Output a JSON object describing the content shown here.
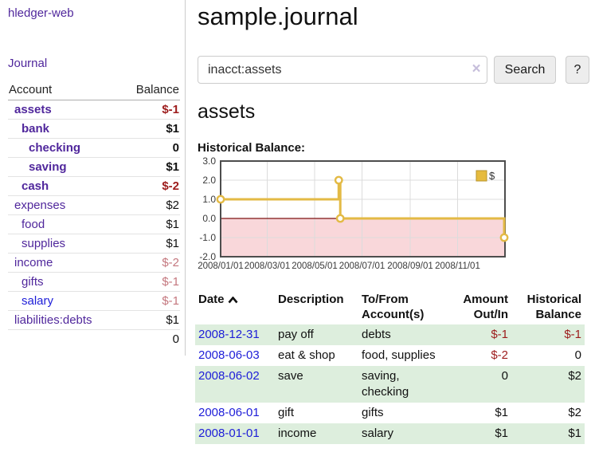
{
  "app": {
    "brand": "hledger-web",
    "nav_journal": "Journal"
  },
  "sidebar": {
    "header": {
      "account": "Account",
      "balance": "Balance"
    },
    "accounts": [
      {
        "label": "assets",
        "indent": 1,
        "bold": true,
        "label_color": "purple",
        "balance": "$-1",
        "balance_style": "neg"
      },
      {
        "label": "bank",
        "indent": 2,
        "bold": true,
        "label_color": "purple",
        "balance": "$1",
        "balance_style": "pos"
      },
      {
        "label": "checking",
        "indent": 3,
        "bold": true,
        "label_color": "purple",
        "balance": "0",
        "balance_style": "pos"
      },
      {
        "label": "saving",
        "indent": 3,
        "bold": true,
        "label_color": "purple",
        "balance": "$1",
        "balance_style": "pos"
      },
      {
        "label": "cash",
        "indent": 2,
        "bold": true,
        "label_color": "purple",
        "balance": "$-2",
        "balance_style": "neg"
      },
      {
        "label": "expenses",
        "indent": 1,
        "bold": false,
        "label_color": "purple",
        "balance": "$2",
        "balance_style": "pos"
      },
      {
        "label": "food",
        "indent": 2,
        "bold": false,
        "label_color": "purple",
        "balance": "$1",
        "balance_style": "pos"
      },
      {
        "label": "supplies",
        "indent": 2,
        "bold": false,
        "label_color": "purple",
        "balance": "$1",
        "balance_style": "pos"
      },
      {
        "label": "income",
        "indent": 1,
        "bold": false,
        "label_color": "purple",
        "balance": "$-2",
        "balance_style": "dimneg"
      },
      {
        "label": "gifts",
        "indent": 2,
        "bold": false,
        "label_color": "purple",
        "balance": "$-1",
        "balance_style": "dimneg"
      },
      {
        "label": "salary",
        "indent": 2,
        "bold": false,
        "label_color": "blue",
        "balance": "$-1",
        "balance_style": "dimneg"
      },
      {
        "label": "liabilities:debts",
        "indent": 1,
        "bold": false,
        "label_color": "purple",
        "balance": "$1",
        "balance_style": "pos"
      }
    ],
    "total": "0"
  },
  "header": {
    "title": "sample.journal"
  },
  "search": {
    "value": "inacct:assets",
    "clear_label": "×",
    "button": "Search",
    "help_button": "?"
  },
  "account_page": {
    "title": "assets",
    "chart_label": "Historical Balance:"
  },
  "chart_data": {
    "type": "line",
    "step": "after",
    "series": [
      {
        "name": "$",
        "points": [
          [
            "2008-01-01",
            1
          ],
          [
            "2008-06-01",
            2
          ],
          [
            "2008-06-03",
            0
          ],
          [
            "2008-12-31",
            -1
          ]
        ]
      }
    ],
    "x_range": [
      "2008-01-01",
      "2009-01-01"
    ],
    "x_ticks": [
      "2008/01/01",
      "2008/03/01",
      "2008/05/01",
      "2008/07/01",
      "2008/09/01",
      "2008/11/01"
    ],
    "y_ticks": [
      3.0,
      2.0,
      1.0,
      0.0,
      -1.0,
      -2.0
    ],
    "y_tick_labels": [
      "3.0",
      "2.0",
      "1.0",
      "0.0",
      "-1.0",
      "-2.0"
    ],
    "ylim": [
      -2,
      3
    ],
    "legend": {
      "label": "$",
      "position": "top-right"
    },
    "colors": {
      "line": "#e3ba45",
      "marker_fill": "#ffffff",
      "negative_region": "#f9d7da",
      "zero_line": "#7d1212",
      "grid": "#dcdcdc",
      "border": "#4d4d4d",
      "legend_fill": "#e6bb3e",
      "legend_border": "#b8942c"
    }
  },
  "register": {
    "headers": {
      "date": "Date",
      "description": "Description",
      "accounts": "To/From\nAccount(s)",
      "amount": "Amount\nOut/In",
      "balance": "Historical\nBalance"
    },
    "rows": [
      {
        "date": "2008-12-31",
        "description": "pay off",
        "accounts": "debts",
        "amount": "$-1",
        "amount_style": "neg",
        "balance": "$-1",
        "balance_style": "neg",
        "shaded": true
      },
      {
        "date": "2008-06-03",
        "description": "eat & shop",
        "accounts": "food, supplies",
        "amount": "$-2",
        "amount_style": "neg",
        "balance": "0",
        "balance_style": "pos",
        "shaded": false
      },
      {
        "date": "2008-06-02",
        "description": "save",
        "accounts": "saving,\nchecking",
        "amount": "0",
        "amount_style": "pos",
        "balance": "$2",
        "balance_style": "pos",
        "shaded": true
      },
      {
        "date": "2008-06-01",
        "description": "gift",
        "accounts": "gifts",
        "amount": "$1",
        "amount_style": "pos",
        "balance": "$2",
        "balance_style": "pos",
        "shaded": false
      },
      {
        "date": "2008-01-01",
        "description": "income",
        "accounts": "salary",
        "amount": "$1",
        "amount_style": "pos",
        "balance": "$1",
        "balance_style": "pos",
        "shaded": true
      }
    ]
  }
}
